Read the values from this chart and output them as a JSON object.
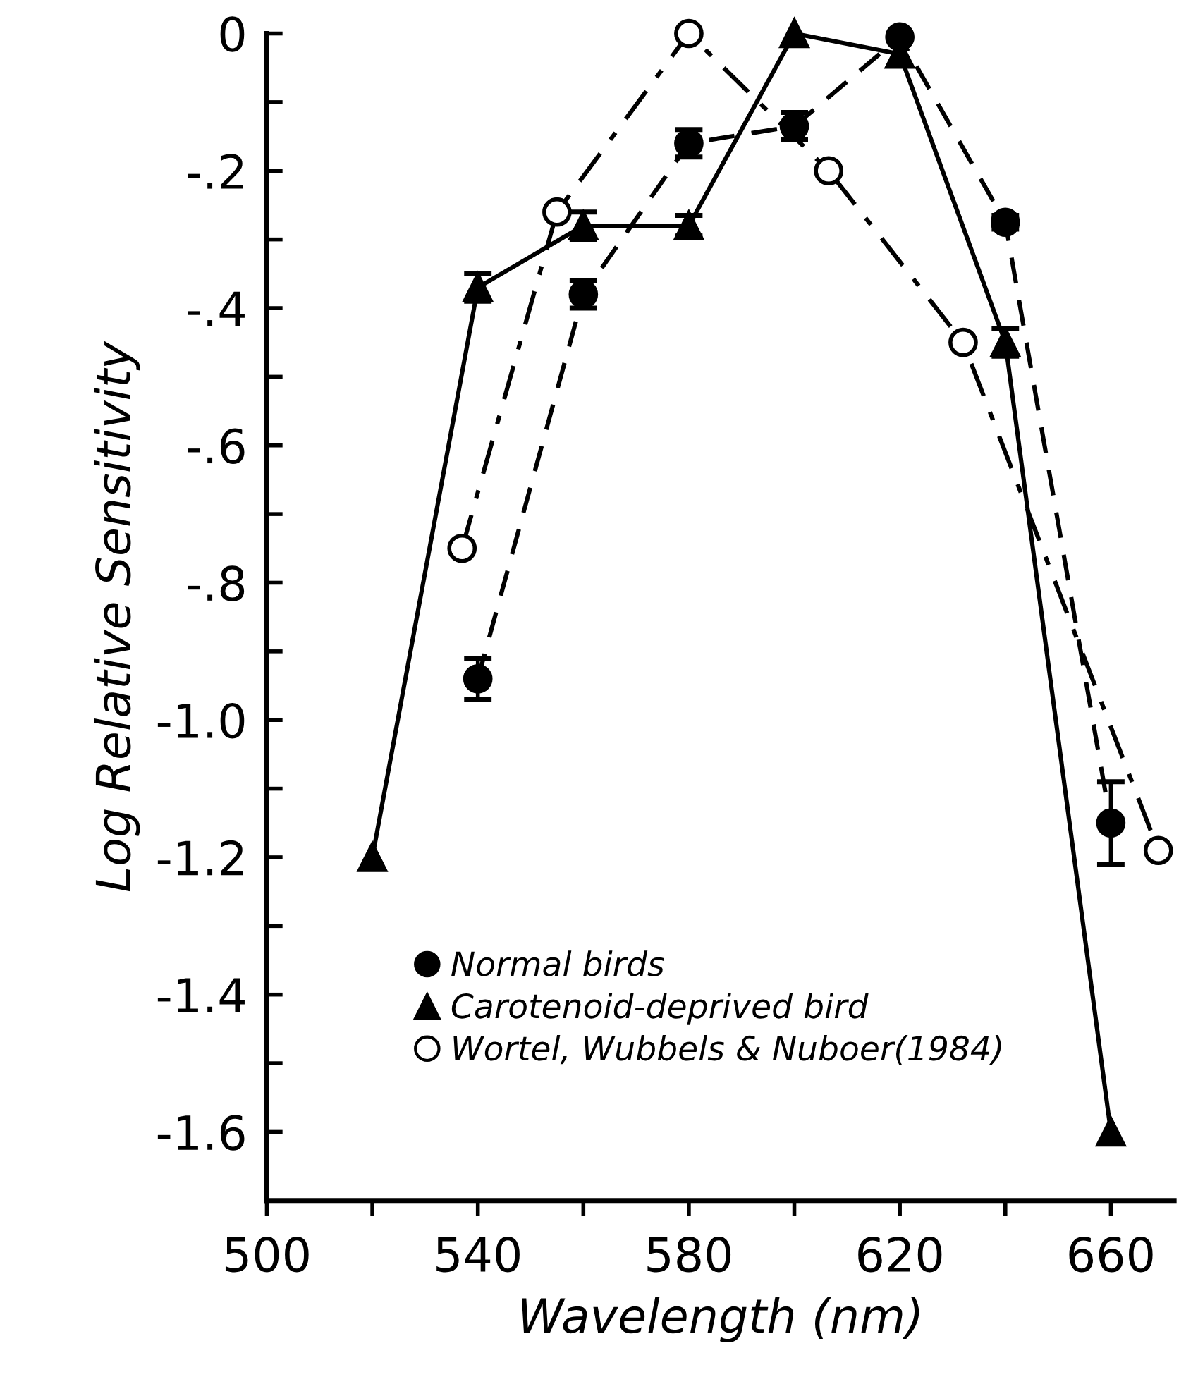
{
  "chart_data": {
    "type": "line",
    "xlabel": "Wavelength (nm)",
    "ylabel": "Log Relative Sensitivity",
    "xlim": [
      500,
      672
    ],
    "ylim": [
      -1.7,
      0
    ],
    "xticks": [
      500,
      {
        "value": 520,
        "label": null
      },
      540,
      {
        "value": 560,
        "label": null
      },
      580,
      {
        "value": 600,
        "label": null
      },
      620,
      {
        "value": 640,
        "label": null
      },
      660
    ],
    "yticks": [
      {
        "value": 0,
        "label": "0"
      },
      {
        "value": -0.1,
        "label": null
      },
      {
        "value": -0.2,
        "label": "-.2"
      },
      {
        "value": -0.3,
        "label": null
      },
      {
        "value": -0.4,
        "label": "-.4"
      },
      {
        "value": -0.5,
        "label": null
      },
      {
        "value": -0.6,
        "label": "-.6"
      },
      {
        "value": -0.7,
        "label": null
      },
      {
        "value": -0.8,
        "label": "-.8"
      },
      {
        "value": -0.9,
        "label": null
      },
      {
        "value": -1.0,
        "label": "-1.0"
      },
      {
        "value": -1.1,
        "label": null
      },
      {
        "value": -1.2,
        "label": "-1.2"
      },
      {
        "value": -1.3,
        "label": null
      },
      {
        "value": -1.4,
        "label": "-1.4"
      },
      {
        "value": -1.5,
        "label": null
      },
      {
        "value": -1.6,
        "label": "-1.6"
      }
    ],
    "grid": false,
    "legend": "bottom",
    "series": [
      {
        "name": "Normal birds",
        "color": "#000000",
        "marker": "circle",
        "line_style": "dashed",
        "x": [
          540,
          560,
          580,
          600,
          620,
          640,
          660
        ],
        "values": [
          -0.94,
          -0.38,
          -0.16,
          -0.135,
          -0.005,
          -0.275,
          -1.15
        ],
        "errors": [
          0.03,
          0.02,
          0.02,
          0.02,
          null,
          0.01,
          0.06
        ]
      },
      {
        "name": "Carotenoid-deprived bird",
        "color": "#000000",
        "marker": "triangle",
        "line_style": "solid",
        "x": [
          520,
          540,
          560,
          580,
          600,
          620,
          640,
          660
        ],
        "values": [
          -1.2,
          -0.37,
          -0.28,
          -0.28,
          0.0,
          -0.03,
          -0.45,
          -1.6
        ],
        "errors": [
          null,
          0.02,
          0.02,
          0.015,
          null,
          null,
          0.02,
          null
        ]
      },
      {
        "name": "Wortel, Wubbels & Nuboer(1984)",
        "color": "#000000",
        "marker": "circle",
        "line_style": "dashdot",
        "x": [
          537,
          555,
          580,
          606.5,
          632,
          669
        ],
        "values": [
          -0.75,
          -0.26,
          0.0,
          -0.2,
          -0.45,
          -1.19
        ]
      }
    ]
  }
}
